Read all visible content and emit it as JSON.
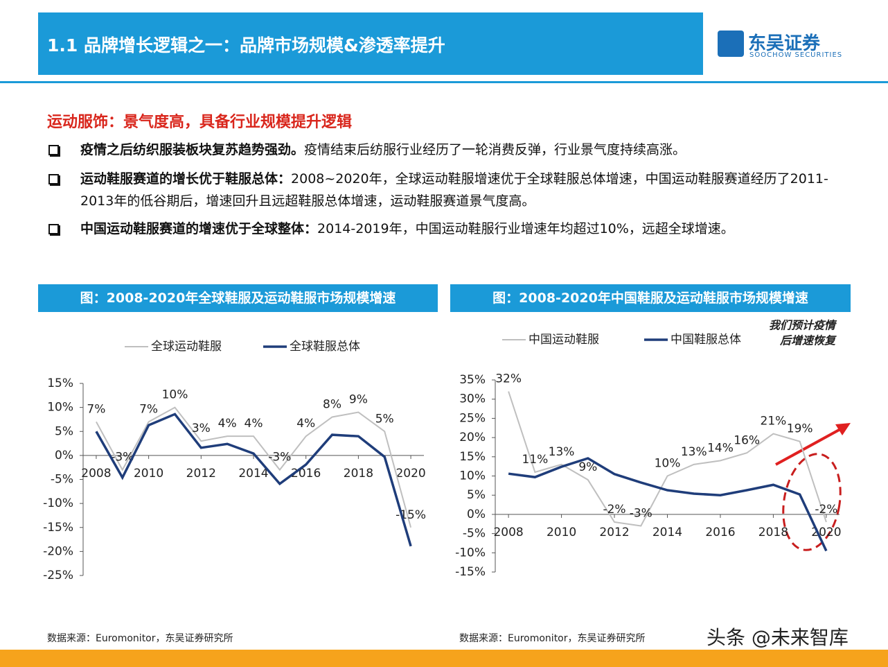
{
  "header": {
    "title": "1.1 品牌增长逻辑之一：品牌市场规模&渗透率提升",
    "logo": "东吴证券",
    "logo_en": "SOOCHOW SECURITIES"
  },
  "section_title": "运动服饰：景气度高，具备行业规模提升逻辑",
  "bullets": [
    {
      "bold": "疫情之后纺织服装板块复苏趋势强劲。",
      "text": "疫情结束后纺服行业经历了一轮消费反弹，行业景气度持续高涨。"
    },
    {
      "bold": "运动鞋服赛道的增长优于鞋服总体：",
      "text": "2008~2020年，全球运动鞋服增速优于全球鞋服总体增速，中国运动鞋服赛道经历了2011-2013年的低谷期后，增速回升且远超鞋服总体增速，运动鞋服赛道景气度高。"
    },
    {
      "bold": "中国运动鞋服赛道的增速优于全球整体：",
      "text": "2014-2019年，中国运动鞋服行业增速年均超过10%，远超全球增速。"
    }
  ],
  "chart_data": [
    {
      "type": "line",
      "title": "图：2008-2020年全球鞋服及运动鞋服市场规模增速",
      "x": [
        2008,
        2009,
        2010,
        2011,
        2012,
        2013,
        2014,
        2015,
        2016,
        2017,
        2018,
        2019,
        2020
      ],
      "xlim": [
        2007.5,
        2020.5
      ],
      "xticks": [
        2008,
        2010,
        2012,
        2014,
        2016,
        2018,
        2020
      ],
      "ylim": [
        -25,
        15
      ],
      "yticks": [
        {
          "value": -25,
          "label": "-25%"
        },
        {
          "value": -20,
          "label": "-20%"
        },
        {
          "value": -15,
          "label": "-15%"
        },
        {
          "value": -10,
          "label": "-10%"
        },
        {
          "value": -5,
          "label": "-5%"
        },
        {
          "value": 0,
          "label": "0%"
        },
        {
          "value": 5,
          "label": "5%"
        },
        {
          "value": 10,
          "label": "10%"
        },
        {
          "value": 15,
          "label": "15%"
        }
      ],
      "series": [
        {
          "name": "全球运动鞋服",
          "color": "#bfbfbf",
          "values": [
            7,
            -3,
            7,
            10,
            3,
            4,
            4,
            -3,
            4,
            8,
            9,
            5,
            -15
          ],
          "value_labels": [
            "7%",
            "-3%",
            "7%",
            "10%",
            "3%",
            "4%",
            "4%",
            "-3%",
            "4%",
            "8%",
            "9%",
            "5%",
            "-15%"
          ]
        },
        {
          "name": "全球鞋服总体",
          "color": "#1f3d7a",
          "values": [
            5,
            -4.6,
            6.3,
            8.6,
            1.6,
            2.4,
            0.4,
            -5.9,
            -1.9,
            4.3,
            4,
            -0.3,
            -18.9
          ]
        }
      ],
      "source": "数据来源：Euromonitor，东吴证券研究所"
    },
    {
      "type": "line",
      "title": "图：2008-2020年中国鞋服及运动鞋服市场规模增速",
      "x": [
        2008,
        2009,
        2010,
        2011,
        2012,
        2013,
        2014,
        2015,
        2016,
        2017,
        2018,
        2019,
        2020
      ],
      "xlim": [
        2007.5,
        2020.5
      ],
      "xticks": [
        2008,
        2010,
        2012,
        2014,
        2016,
        2018,
        2020
      ],
      "ylim": [
        -15,
        35
      ],
      "yticks": [
        {
          "value": -15,
          "label": "-15%"
        },
        {
          "value": -10,
          "label": "-10%"
        },
        {
          "value": -5,
          "label": "-5%"
        },
        {
          "value": 0,
          "label": "0%"
        },
        {
          "value": 5,
          "label": "5%"
        },
        {
          "value": 10,
          "label": "10%"
        },
        {
          "value": 15,
          "label": "15%"
        },
        {
          "value": 20,
          "label": "20%"
        },
        {
          "value": 25,
          "label": "25%"
        },
        {
          "value": 30,
          "label": "30%"
        },
        {
          "value": 35,
          "label": "35%"
        }
      ],
      "series": [
        {
          "name": "中国运动鞋服",
          "color": "#bfbfbf",
          "values": [
            32,
            11,
            13,
            9,
            -2,
            -3,
            10,
            13,
            14,
            16,
            21,
            19,
            -2
          ],
          "value_labels": [
            "32%",
            "11%",
            "13%",
            "9%",
            "-2%",
            "-3%",
            "10%",
            "13%",
            "14%",
            "16%",
            "21%",
            "19%",
            "-2%"
          ]
        },
        {
          "name": "中国鞋服总体",
          "color": "#1f3d7a",
          "values": [
            10.6,
            9.7,
            12.4,
            14.6,
            10.5,
            8.3,
            6.3,
            5.4,
            5,
            6.3,
            7.7,
            5.2,
            -9.5
          ]
        }
      ],
      "annotation": [
        "我们预计疫情",
        "后增速恢复"
      ],
      "source": "数据来源：Euromonitor，东吴证券研究所"
    }
  ],
  "watermark": "头条 @未来智库"
}
